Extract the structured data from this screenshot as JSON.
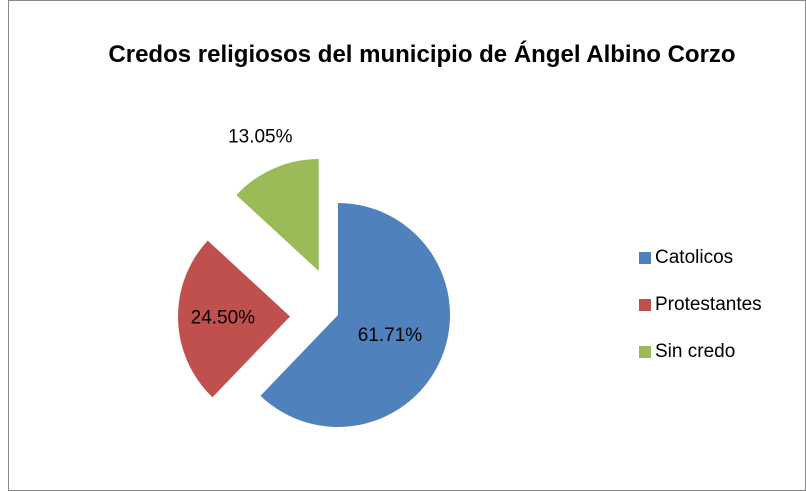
{
  "chart_data": {
    "type": "pie",
    "title": "Credos religiosos del municipio de Ángel Albino Corzo",
    "categories": [
      "Catolicos",
      "Protestantes",
      "Sin credo"
    ],
    "values": [
      61.71,
      24.5,
      13.05
    ],
    "value_labels": [
      "61.71%",
      "24.50%",
      "13.05%"
    ],
    "colors": [
      "#4f81bd",
      "#c0504d",
      "#9bbb59"
    ],
    "legend": "right"
  }
}
